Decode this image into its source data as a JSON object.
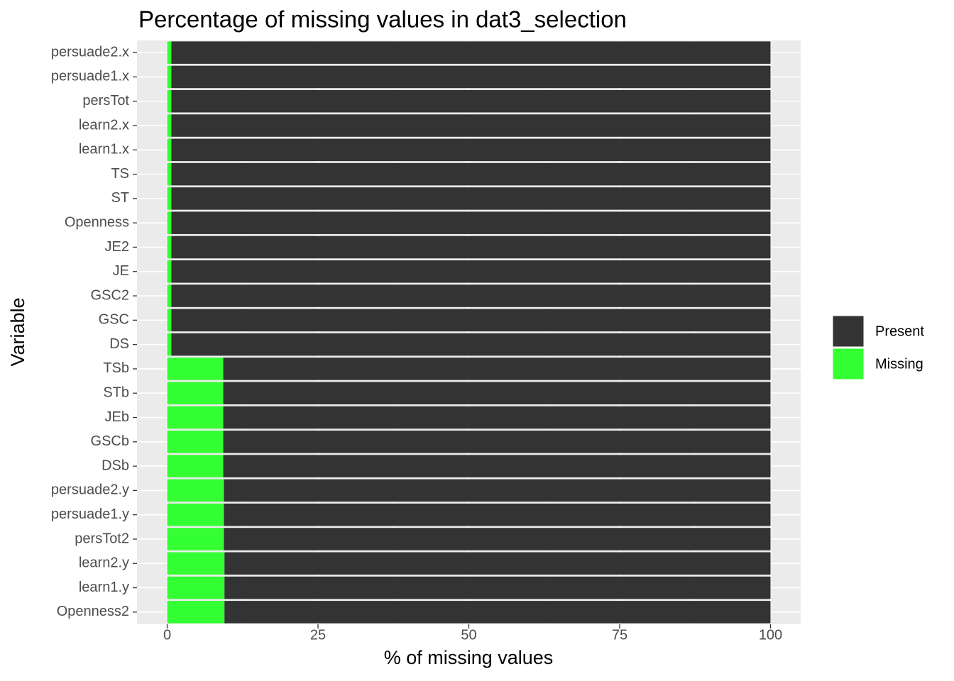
{
  "chart_data": {
    "type": "stacked-bar",
    "orientation": "horizontal",
    "title": "Percentage of missing values in dat3_selection",
    "x_label": "% of missing values",
    "y_label": "Variable",
    "categories": [
      "persuade2.x",
      "persuade1.x",
      "persTot",
      "learn2.x",
      "learn1.x",
      "TS",
      "ST",
      "Openness",
      "JE2",
      "JE",
      "GSC2",
      "GSC",
      "DS",
      "TSb",
      "STb",
      "JEb",
      "GSCb",
      "DSb",
      "persuade2.y",
      "persuade1.y",
      "persTot2",
      "learn2.y",
      "learn1.y",
      "Openness2"
    ],
    "series": [
      {
        "name": "Missing",
        "color": "#33ff33",
        "values": [
          0.7,
          0.7,
          0.7,
          0.7,
          0.7,
          0.7,
          0.7,
          0.7,
          0.7,
          0.7,
          0.7,
          0.7,
          0.7,
          9.3,
          9.3,
          9.3,
          9.3,
          9.3,
          9.4,
          9.4,
          9.4,
          9.5,
          9.5,
          9.5
        ]
      },
      {
        "name": "Present",
        "color": "#333333",
        "values": [
          99.3,
          99.3,
          99.3,
          99.3,
          99.3,
          99.3,
          99.3,
          99.3,
          99.3,
          99.3,
          99.3,
          99.3,
          99.3,
          90.7,
          90.7,
          90.7,
          90.7,
          90.7,
          90.6,
          90.6,
          90.6,
          90.5,
          90.5,
          90.5
        ]
      }
    ],
    "xlim": [
      -5,
      105
    ],
    "xticks": [
      0,
      25,
      50,
      75,
      100
    ],
    "grid": true,
    "legend": "right"
  }
}
